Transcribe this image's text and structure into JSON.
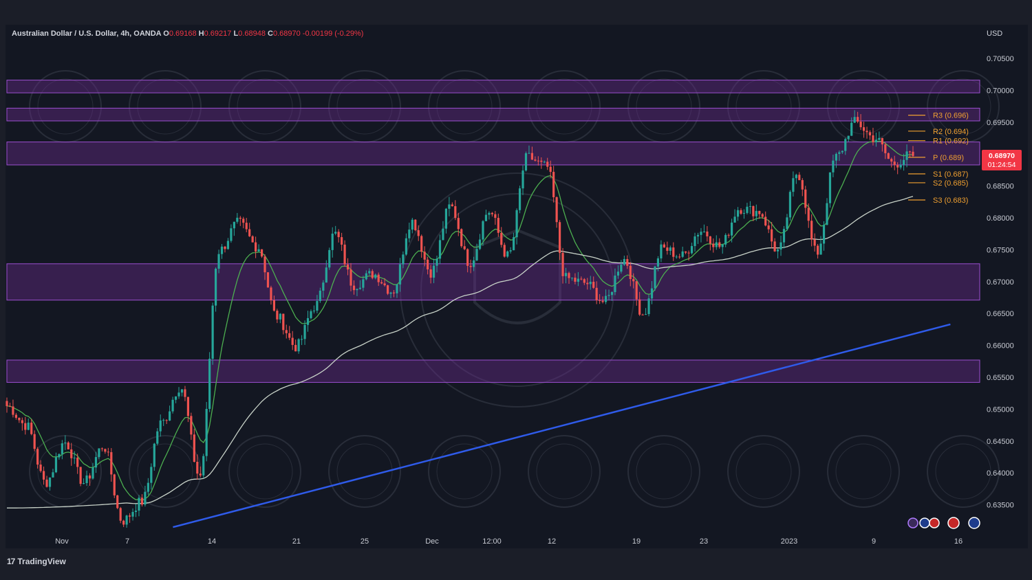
{
  "header": {
    "symbol": "Australian Dollar / U.S. Dollar, 4h, OANDA",
    "o_label": "O",
    "o_value": "0.69168",
    "h_label": "H",
    "h_value": "0.69217",
    "l_label": "L",
    "l_value": "0.68948",
    "c_label": "C",
    "c_value": "0.68970",
    "change": "-0.00199 (-0.29%)",
    "currency": "USD"
  },
  "price_badge": {
    "price": "0.68970",
    "countdown": "01:24:54"
  },
  "branding": "TradingView",
  "colors": {
    "bull": "#26a69a",
    "bear": "#ef5350",
    "zone": "#6a2c8c",
    "trend": "#2f5bea",
    "ma_fast": "#4caf50",
    "ma_slow": "#c9d3c9",
    "pivot": "#f0a030",
    "badge": "#f23645"
  },
  "chart_data": {
    "type": "candlestick",
    "ylim": [
      0.6315,
      0.7105
    ],
    "y_ticks": [
      "0.70500",
      "0.70000",
      "0.69500",
      "0.69000",
      "0.68500",
      "0.68000",
      "0.67500",
      "0.67000",
      "0.66500",
      "0.66000",
      "0.65500",
      "0.65000",
      "0.64500",
      "0.64000",
      "0.63500"
    ],
    "x_ticks": [
      "Nov",
      "7",
      "14",
      "21",
      "25",
      "Dec",
      "12:00",
      "12",
      "19",
      "23",
      "2023",
      "9",
      "16"
    ],
    "zones": [
      [
        0.6996,
        0.7016
      ],
      [
        0.6952,
        0.6972
      ],
      [
        0.6883,
        0.6919
      ],
      [
        0.6671,
        0.6728
      ],
      [
        0.6542,
        0.6577
      ]
    ],
    "trendline": {
      "start": {
        "date": "2022-11-10",
        "price": 0.6315
      },
      "end": {
        "date": "2023-01-15",
        "price": 0.6633
      }
    },
    "pivots": [
      {
        "label": "R3 (0.696)",
        "value": 0.6961
      },
      {
        "label": "R2 (0.694)",
        "value": 0.6936
      },
      {
        "label": "R1 (0.692)",
        "value": 0.6921
      },
      {
        "label": "P (0.689)",
        "value": 0.6895
      },
      {
        "label": "S1 (0.687)",
        "value": 0.6869
      },
      {
        "label": "S2 (0.685)",
        "value": 0.6855
      },
      {
        "label": "S3 (0.683)",
        "value": 0.6828
      }
    ],
    "anchors": [
      0.6505,
      0.6475,
      0.6385,
      0.6448,
      0.6385,
      0.6442,
      0.6325,
      0.6355,
      0.6478,
      0.6535,
      0.6395,
      0.6748,
      0.6792,
      0.6755,
      0.6645,
      0.6598,
      0.6662,
      0.6775,
      0.6695,
      0.6712,
      0.6685,
      0.6795,
      0.6715,
      0.6818,
      0.673,
      0.681,
      0.674,
      0.6895,
      0.688,
      0.6705,
      0.6698,
      0.6668,
      0.6735,
      0.665,
      0.6752,
      0.674,
      0.678,
      0.6755,
      0.6815,
      0.681,
      0.6748,
      0.687,
      0.6745,
      0.6895,
      0.695,
      0.6925,
      0.6885,
      0.69
    ],
    "last_close": 0.6897
  }
}
